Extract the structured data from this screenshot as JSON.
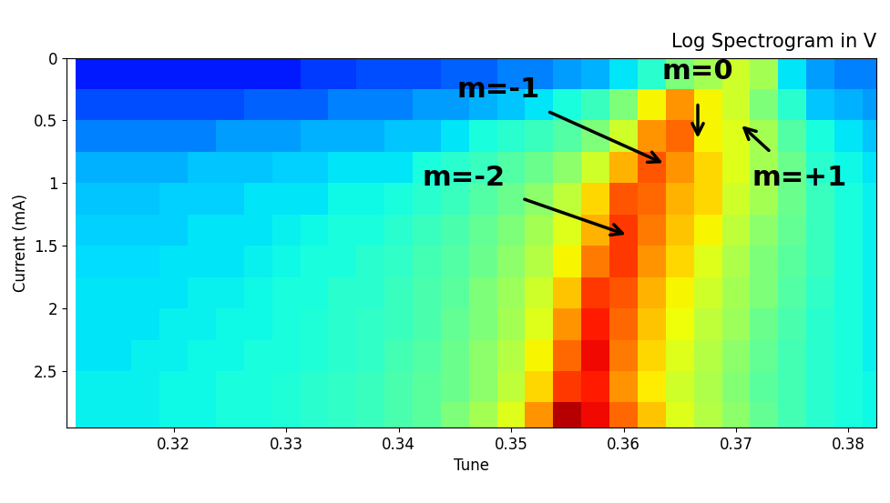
{
  "chart_data": {
    "type": "heatmap",
    "title": "Log Spectrogram in V",
    "x_label": "Tune",
    "y_label": "Current (mA)",
    "xlim": [
      0.3105,
      0.3825
    ],
    "ylim": [
      2.95,
      0
    ],
    "xticks": [
      0.32,
      0.33,
      0.34,
      0.35,
      0.36,
      0.37,
      0.38
    ],
    "yticks": [
      0,
      0.5,
      1,
      1.5,
      2,
      2.5
    ],
    "x": [
      0.3125,
      0.315,
      0.3175,
      0.32,
      0.3225,
      0.325,
      0.3275,
      0.33,
      0.3325,
      0.335,
      0.3375,
      0.34,
      0.3425,
      0.345,
      0.3475,
      0.35,
      0.3525,
      0.355,
      0.3575,
      0.36,
      0.3625,
      0.365,
      0.3675,
      0.37,
      0.3725,
      0.375,
      0.3775,
      0.38,
      0.3825
    ],
    "y": [
      0.125,
      0.375,
      0.625,
      0.875,
      1.125,
      1.375,
      1.625,
      1.875,
      2.125,
      2.375,
      2.625,
      2.875
    ],
    "cells": [
      [
        0.15,
        0.15,
        0.15,
        0.15,
        0.15,
        0.15,
        0.15,
        0.15,
        0.18,
        0.18,
        0.2,
        0.2,
        0.2,
        0.22,
        0.22,
        0.25,
        0.25,
        0.28,
        0.3,
        0.35,
        0.4,
        0.5,
        0.55,
        0.6,
        0.55,
        0.35,
        0.28,
        0.25,
        0.25
      ],
      [
        0.2,
        0.2,
        0.2,
        0.2,
        0.2,
        0.2,
        0.22,
        0.22,
        0.22,
        0.25,
        0.25,
        0.25,
        0.28,
        0.28,
        0.3,
        0.32,
        0.35,
        0.38,
        0.42,
        0.5,
        0.65,
        0.75,
        0.65,
        0.6,
        0.5,
        0.4,
        0.32,
        0.3,
        0.28
      ],
      [
        0.25,
        0.25,
        0.25,
        0.25,
        0.25,
        0.28,
        0.28,
        0.28,
        0.3,
        0.3,
        0.3,
        0.32,
        0.32,
        0.35,
        0.38,
        0.4,
        0.42,
        0.45,
        0.5,
        0.6,
        0.75,
        0.8,
        0.65,
        0.62,
        0.55,
        0.45,
        0.38,
        0.35,
        0.32
      ],
      [
        0.3,
        0.3,
        0.3,
        0.3,
        0.32,
        0.32,
        0.32,
        0.33,
        0.33,
        0.35,
        0.35,
        0.35,
        0.38,
        0.4,
        0.42,
        0.45,
        0.48,
        0.52,
        0.6,
        0.72,
        0.82,
        0.75,
        0.68,
        0.62,
        0.55,
        0.48,
        0.4,
        0.37,
        0.35
      ],
      [
        0.32,
        0.32,
        0.32,
        0.33,
        0.33,
        0.33,
        0.35,
        0.35,
        0.35,
        0.37,
        0.37,
        0.38,
        0.4,
        0.42,
        0.45,
        0.48,
        0.52,
        0.58,
        0.68,
        0.82,
        0.8,
        0.72,
        0.68,
        0.6,
        0.55,
        0.48,
        0.42,
        0.38,
        0.36
      ],
      [
        0.33,
        0.33,
        0.33,
        0.33,
        0.35,
        0.35,
        0.35,
        0.36,
        0.37,
        0.38,
        0.38,
        0.4,
        0.42,
        0.44,
        0.47,
        0.5,
        0.55,
        0.62,
        0.72,
        0.85,
        0.78,
        0.7,
        0.65,
        0.58,
        0.52,
        0.47,
        0.42,
        0.38,
        0.36
      ],
      [
        0.34,
        0.34,
        0.34,
        0.35,
        0.35,
        0.35,
        0.36,
        0.37,
        0.38,
        0.38,
        0.4,
        0.41,
        0.43,
        0.45,
        0.48,
        0.52,
        0.57,
        0.65,
        0.78,
        0.85,
        0.75,
        0.68,
        0.62,
        0.56,
        0.5,
        0.46,
        0.42,
        0.38,
        0.36
      ],
      [
        0.35,
        0.35,
        0.35,
        0.35,
        0.36,
        0.36,
        0.37,
        0.38,
        0.38,
        0.4,
        0.4,
        0.42,
        0.44,
        0.46,
        0.5,
        0.54,
        0.6,
        0.7,
        0.85,
        0.82,
        0.72,
        0.65,
        0.6,
        0.55,
        0.5,
        0.45,
        0.41,
        0.38,
        0.36
      ],
      [
        0.35,
        0.35,
        0.35,
        0.36,
        0.36,
        0.37,
        0.37,
        0.38,
        0.39,
        0.4,
        0.41,
        0.42,
        0.44,
        0.47,
        0.5,
        0.55,
        0.62,
        0.75,
        0.88,
        0.8,
        0.7,
        0.64,
        0.58,
        0.54,
        0.48,
        0.44,
        0.4,
        0.38,
        0.36
      ],
      [
        0.35,
        0.35,
        0.36,
        0.36,
        0.37,
        0.37,
        0.38,
        0.38,
        0.39,
        0.4,
        0.41,
        0.43,
        0.45,
        0.48,
        0.52,
        0.57,
        0.65,
        0.8,
        0.9,
        0.78,
        0.68,
        0.62,
        0.57,
        0.52,
        0.47,
        0.43,
        0.4,
        0.38,
        0.36
      ],
      [
        0.36,
        0.36,
        0.36,
        0.37,
        0.37,
        0.38,
        0.38,
        0.39,
        0.4,
        0.41,
        0.42,
        0.44,
        0.46,
        0.48,
        0.52,
        0.58,
        0.68,
        0.85,
        0.88,
        0.75,
        0.66,
        0.6,
        0.56,
        0.51,
        0.46,
        0.43,
        0.4,
        0.38,
        0.37
      ],
      [
        0.36,
        0.36,
        0.36,
        0.37,
        0.37,
        0.38,
        0.38,
        0.39,
        0.4,
        0.41,
        0.42,
        0.44,
        0.46,
        0.5,
        0.55,
        0.62,
        0.75,
        0.95,
        0.9,
        0.8,
        0.7,
        0.62,
        0.57,
        0.52,
        0.47,
        0.43,
        0.4,
        0.38,
        0.37
      ]
    ],
    "annotations": [
      {
        "text": "m=-2",
        "x": 0.3602,
        "y": 1.41,
        "text_x": 0.3458,
        "text_y": 0.96
      },
      {
        "text": "m=-1",
        "x": 0.3635,
        "y": 0.84,
        "text_x": 0.3489,
        "text_y": 0.25
      },
      {
        "text": "m=0",
        "x": 0.3666,
        "y": 0.64,
        "text_x": 0.3666,
        "text_y": 0.11
      },
      {
        "text": "m=+1",
        "x": 0.3705,
        "y": 0.54,
        "text_x": 0.3756,
        "text_y": 0.96
      }
    ]
  }
}
